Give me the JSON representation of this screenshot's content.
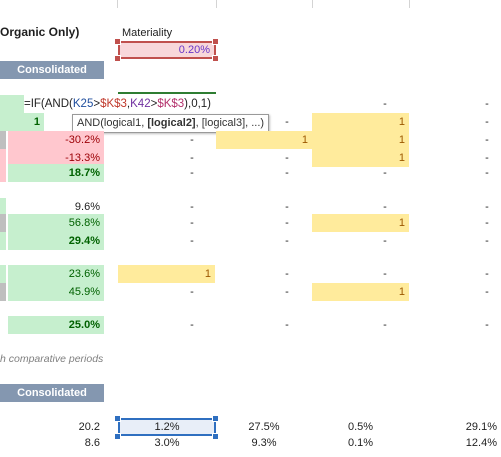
{
  "header": {
    "section_title": "Organic Only)",
    "materiality_label": "Materiality",
    "materiality_value": "0.20%",
    "consolidated_1": "Consolidated",
    "consolidated_2": "Consolidated"
  },
  "formula": {
    "prefix": "=IF(AND(",
    "ref1": "K25",
    "op1": ">",
    "ref2": "$K$3",
    "comma1": ",",
    "ref3": "K42",
    "op2": ">",
    "ref4": "$K$3",
    "suffix": "),0,1)"
  },
  "tooltip": {
    "prefix": "AND(logical1, ",
    "bold": "[logical2]",
    "suffix": ", [logical3], ...)"
  },
  "rows_top": [
    {
      "a": "1",
      "b": "",
      "c": "-",
      "d": "",
      "e": "1",
      "f": "-"
    },
    {
      "a": "-30.2%",
      "b": "-",
      "c": "1",
      "d": "1",
      "f": "-"
    },
    {
      "a": "-13.3%",
      "b": "-",
      "c": "-",
      "d": "1",
      "f": "-"
    },
    {
      "a": "18.7%",
      "b": "-",
      "c": "-",
      "d": "-",
      "f": "-"
    }
  ],
  "formula_row_dashes": {
    "e": "-",
    "f": "-"
  },
  "rows_mid": [
    {
      "a": "9.6%",
      "b": "-",
      "c": "-",
      "d": "-",
      "f": "-"
    },
    {
      "a": "56.8%",
      "b": "-",
      "c": "-",
      "d": "1",
      "f": "-"
    },
    {
      "a": "29.4%",
      "b": "-",
      "c": "-",
      "d": "-",
      "f": "-"
    }
  ],
  "rows_low": [
    {
      "a": "23.6%",
      "b": "1",
      "c": "-",
      "d": "-",
      "f": "-"
    },
    {
      "a": "45.9%",
      "b": "-",
      "c": "-",
      "d": "1",
      "f": "-"
    }
  ],
  "row_25": {
    "a": "25.0%",
    "b": "-",
    "c": "-",
    "d": "-",
    "f": "-"
  },
  "note": "h comparative periods",
  "rows_bottom": [
    {
      "a": "20.2",
      "b": "1.2%",
      "c": "27.5%",
      "d": "0.5%",
      "f": "29.1%"
    },
    {
      "a": "8.6",
      "b": "3.0%",
      "c": "9.3%",
      "d": "0.1%",
      "f": "12.4%"
    }
  ],
  "colors": {
    "header_fill": "#8497b0",
    "good_fill": "#c6efce",
    "bad_fill": "#ffc7ce",
    "flag_fill": "#ffeb9c",
    "selection": "#2f6fc0"
  }
}
